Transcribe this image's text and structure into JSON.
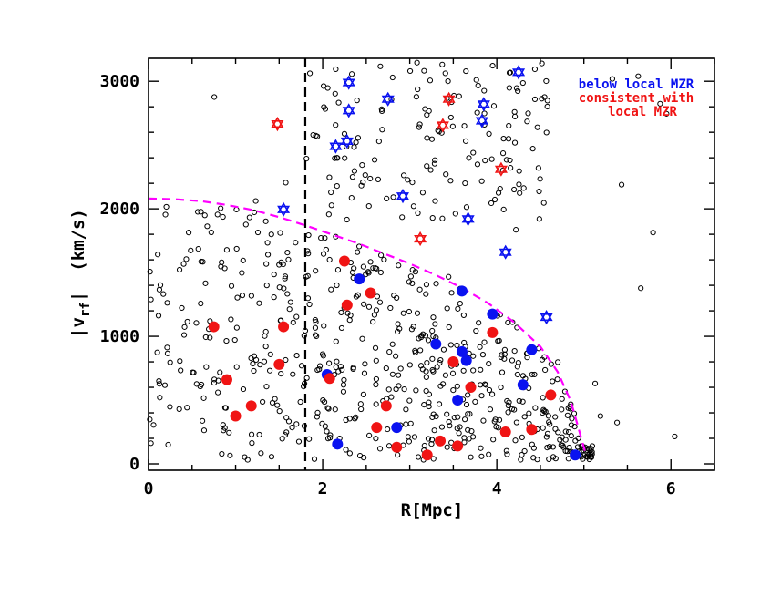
{
  "chart_data": {
    "type": "scatter",
    "title": "",
    "xlabel": "R[Mpc]",
    "ylabel_main": "|v",
    "ylabel_sub": "rf",
    "ylabel_units": "(km/s)",
    "xlim": [
      0,
      6.5
    ],
    "ylim": [
      -50,
      3180
    ],
    "x_ticks": [
      0,
      2,
      4,
      6
    ],
    "y_ticks": [
      0,
      1000,
      2000,
      3000
    ],
    "x_tick_labels": [
      "0",
      "2",
      "4",
      "6"
    ],
    "y_tick_labels": [
      "0",
      "1000",
      "2000",
      "3000"
    ],
    "grid": false,
    "legend_position": "top-right",
    "legend": {
      "blue": "below local MZR",
      "red_line1": "consistent with",
      "red_line2": "local MZR"
    },
    "colors": {
      "blue": "#0a12f0",
      "red": "#f01414",
      "magenta": "#ff00ff",
      "background_points": "#000000"
    },
    "reference_line": {
      "x": 1.8,
      "style": "dashed",
      "color": "#000000"
    },
    "boundary_curve": {
      "color": "#ff00ff",
      "style": "dashed",
      "points": [
        [
          0.0,
          2080
        ],
        [
          0.3,
          2075
        ],
        [
          0.6,
          2060
        ],
        [
          0.9,
          2030
        ],
        [
          1.2,
          1990
        ],
        [
          1.5,
          1935
        ],
        [
          1.8,
          1870
        ],
        [
          2.1,
          1800
        ],
        [
          2.4,
          1730
        ],
        [
          2.7,
          1650
        ],
        [
          3.0,
          1570
        ],
        [
          3.3,
          1480
        ],
        [
          3.6,
          1380
        ],
        [
          3.9,
          1260
        ],
        [
          4.2,
          1110
        ],
        [
          4.5,
          920
        ],
        [
          4.7,
          720
        ],
        [
          4.85,
          490
        ],
        [
          4.95,
          250
        ],
        [
          5.02,
          80
        ]
      ]
    },
    "series": [
      {
        "name": "below local MZR",
        "marker": "filled-circle",
        "color": "#0a12f0",
        "points": [
          [
            2.42,
            1450
          ],
          [
            3.6,
            1355
          ],
          [
            3.95,
            1175
          ],
          [
            3.3,
            940
          ],
          [
            3.6,
            880
          ],
          [
            3.65,
            810
          ],
          [
            4.4,
            895
          ],
          [
            2.05,
            700
          ],
          [
            4.3,
            620
          ],
          [
            3.55,
            500
          ],
          [
            2.85,
            285
          ],
          [
            2.17,
            155
          ],
          [
            4.9,
            70
          ]
        ]
      },
      {
        "name": "consistent with local MZR",
        "marker": "filled-circle",
        "color": "#f01414",
        "points": [
          [
            2.25,
            1590
          ],
          [
            2.55,
            1340
          ],
          [
            2.28,
            1245
          ],
          [
            0.75,
            1075
          ],
          [
            1.55,
            1075
          ],
          [
            3.95,
            1030
          ],
          [
            1.5,
            780
          ],
          [
            3.5,
            800
          ],
          [
            2.08,
            670
          ],
          [
            0.9,
            660
          ],
          [
            3.7,
            600
          ],
          [
            4.62,
            540
          ],
          [
            2.73,
            455
          ],
          [
            1.18,
            455
          ],
          [
            1.0,
            375
          ],
          [
            2.62,
            285
          ],
          [
            3.35,
            180
          ],
          [
            3.55,
            140
          ],
          [
            2.85,
            130
          ],
          [
            3.2,
            70
          ],
          [
            4.1,
            250
          ],
          [
            4.4,
            270
          ]
        ]
      },
      {
        "name": "",
        "marker": "star",
        "color": "#0a12f0",
        "points": [
          [
            2.3,
            2990
          ],
          [
            2.3,
            2770
          ],
          [
            2.75,
            2860
          ],
          [
            2.28,
            2530
          ],
          [
            2.15,
            2490
          ],
          [
            3.85,
            2820
          ],
          [
            3.83,
            2690
          ],
          [
            4.25,
            3070
          ],
          [
            2.92,
            2100
          ],
          [
            3.67,
            1920
          ],
          [
            1.55,
            1995
          ],
          [
            4.1,
            1660
          ],
          [
            4.57,
            1150
          ]
        ]
      },
      {
        "name": "",
        "marker": "star",
        "color": "#f01414",
        "points": [
          [
            1.48,
            2665
          ],
          [
            3.45,
            2860
          ],
          [
            3.38,
            2655
          ],
          [
            4.05,
            2310
          ],
          [
            3.12,
            1765
          ]
        ]
      },
      {
        "name": "",
        "marker": "open-circle",
        "color": "#000000",
        "points": []
      }
    ]
  }
}
